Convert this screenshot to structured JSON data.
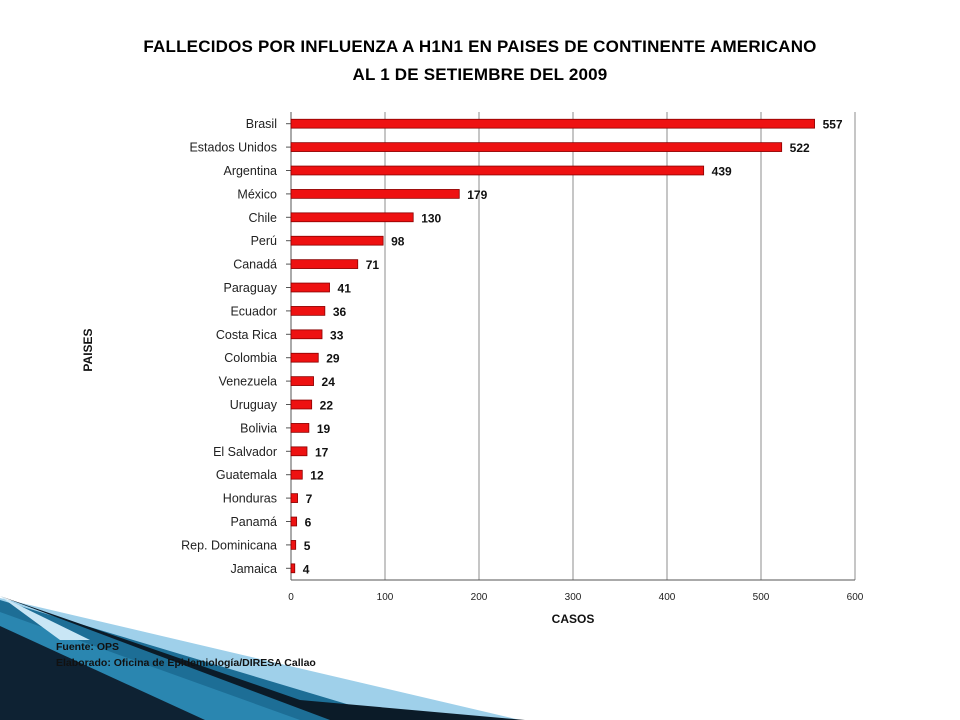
{
  "slide": {
    "title_line1": "FALLECIDOS POR INFLUENZA A H1N1 EN PAISES DE CONTINENTE AMERICANO",
    "title_line2": "AL 1 DE SETIEMBRE DEL 2009",
    "source": "Fuente: OPS",
    "prepared_by": "Elaborado: Oficina de Epidemiología/DIRESA Callao"
  },
  "colors": {
    "bar": "#ee1111",
    "bar_border": "#8a0000",
    "grid": "#8c8c8c",
    "deco_dark": "#0e2233",
    "deco_mid": "#1d6e96",
    "deco_light": "#9fd0ea"
  },
  "chart_data": {
    "type": "bar",
    "orientation": "horizontal",
    "categories": [
      "Brasil",
      "Estados Unidos",
      "Argentina",
      "México",
      "Chile",
      "Perú",
      "Canadá",
      "Paraguay",
      "Ecuador",
      "Costa Rica",
      "Colombia",
      "Venezuela",
      "Uruguay",
      "Bolivia",
      "El Salvador",
      "Guatemala",
      "Honduras",
      "Panamá",
      "Rep. Dominicana",
      "Jamaica"
    ],
    "values": [
      557,
      522,
      439,
      179,
      130,
      98,
      71,
      41,
      36,
      33,
      29,
      24,
      22,
      19,
      17,
      12,
      7,
      6,
      5,
      4
    ],
    "value_labels": [
      "557",
      "522",
      "439",
      "179",
      "130",
      "98",
      "71",
      "41",
      "36",
      "33",
      "29",
      "24",
      "22",
      "19",
      "17",
      "12",
      "7",
      "6",
      "5",
      "4"
    ],
    "xlabel": "CASOS",
    "ylabel": "PAISES",
    "xlim": [
      0,
      600
    ],
    "xticks": [
      "0",
      "100",
      "200",
      "300",
      "400",
      "500",
      "600"
    ],
    "grid": "vertical",
    "legend": "none"
  }
}
